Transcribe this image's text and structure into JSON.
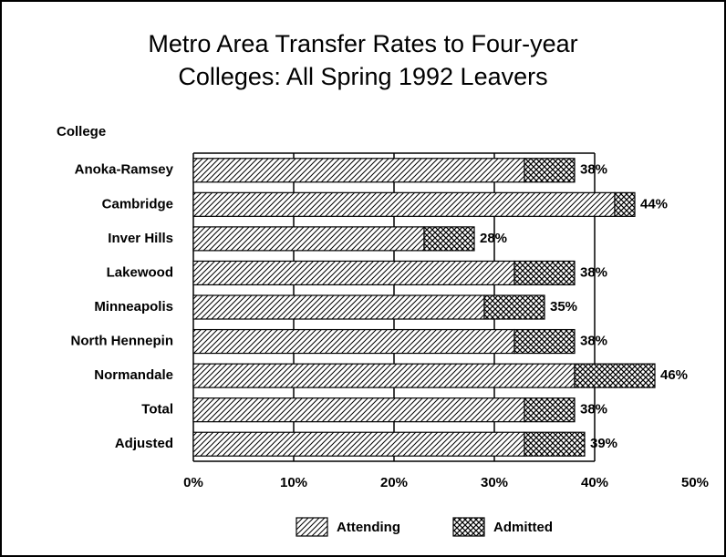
{
  "chart_data": {
    "type": "stacked_barh",
    "title": "Metro Area Transfer Rates to Four-year",
    "subtitle": "Colleges: All Spring 1992 Leavers",
    "y_label": "College",
    "categories": [
      "Anoka-Ramsey",
      "Cambridge",
      "Inver Hills",
      "Lakewood",
      "Minneapolis",
      "North Hennepin",
      "Normandale",
      "Total",
      "Adjusted"
    ],
    "series": [
      {
        "name": "Attending",
        "color": "#000000",
        "pattern": "hatch",
        "values": [
          33,
          42,
          23,
          32,
          29,
          32,
          38,
          33,
          33
        ]
      },
      {
        "name": "Admitted",
        "color": "#000000",
        "pattern": "crosshatch",
        "values": [
          5,
          2,
          5,
          6,
          6,
          6,
          8,
          5,
          6
        ]
      }
    ],
    "totals": [
      38,
      44,
      28,
      38,
      35,
      38,
      46,
      38,
      39
    ],
    "total_labels": [
      "38%",
      "44%",
      "28%",
      "38%",
      "35%",
      "38%",
      "46%",
      "38%",
      "39%"
    ],
    "xlim": [
      0,
      50
    ],
    "xticks": [
      {
        "value": 0,
        "label": "0%"
      },
      {
        "value": 10,
        "label": "10%"
      },
      {
        "value": 20,
        "label": "20%"
      },
      {
        "value": 30,
        "label": "30%"
      },
      {
        "value": 40,
        "label": "40%"
      },
      {
        "value": 50,
        "label": "50%"
      }
    ],
    "grid": true,
    "legend": "bottom"
  }
}
